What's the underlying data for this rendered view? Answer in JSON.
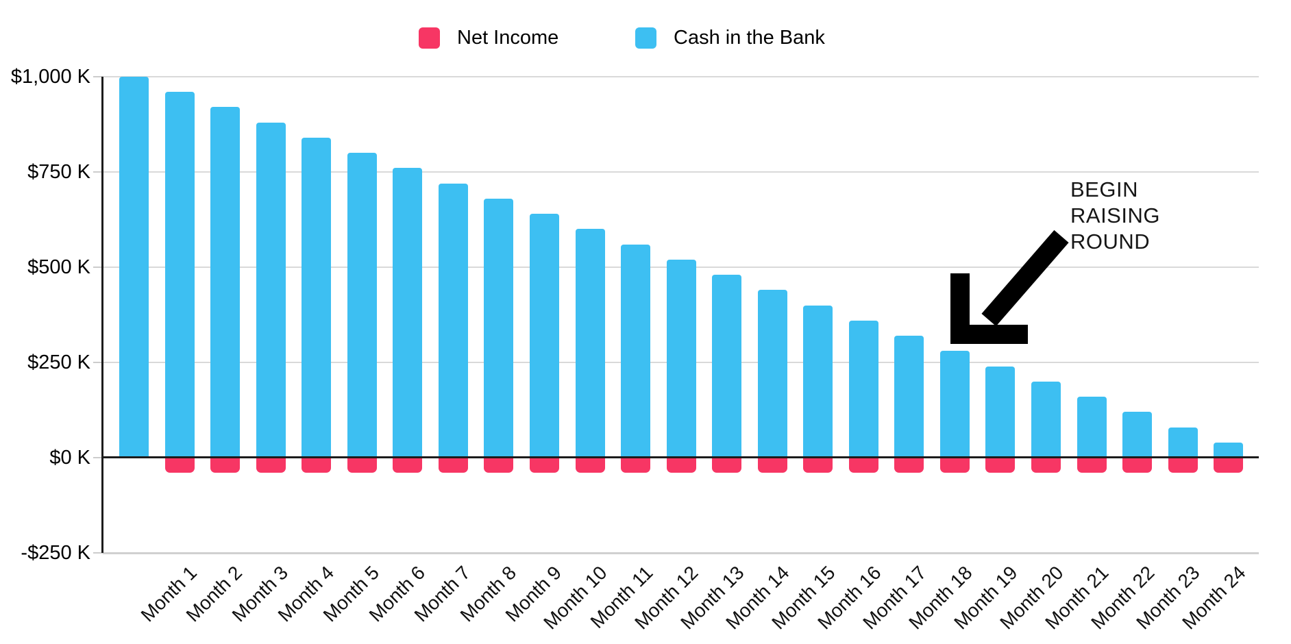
{
  "legend": {
    "items": [
      {
        "label": "Net Income",
        "color": "#f73664"
      },
      {
        "label": "Cash in the Bank",
        "color": "#3dbff2"
      }
    ]
  },
  "annotation": {
    "lines": [
      "BEGIN",
      "RAISING",
      "ROUND"
    ],
    "full_text": "BEGIN RAISING ROUND",
    "arrow_color": "#000000"
  },
  "chart_data": {
    "type": "bar",
    "title": "",
    "xlabel": "",
    "ylabel": "",
    "categories": [
      "",
      "Month 1",
      "Month 2",
      "Month 3",
      "Month 4",
      "Month 5",
      "Month 6",
      "Month 7",
      "Month 8",
      "Month 9",
      "Month 10",
      "Month 11",
      "Month 12",
      "Month 13",
      "Month 14",
      "Month 15",
      "Month 16",
      "Month 17",
      "Month 18",
      "Month 19",
      "Month 20",
      "Month 21",
      "Month 22",
      "Month 23",
      "Month 24"
    ],
    "series": [
      {
        "name": "Net Income",
        "color": "#f73664",
        "values": [
          null,
          -40,
          -40,
          -40,
          -40,
          -40,
          -40,
          -40,
          -40,
          -40,
          -40,
          -40,
          -40,
          -40,
          -40,
          -40,
          -40,
          -40,
          -40,
          -40,
          -40,
          -40,
          -40,
          -40,
          -40
        ]
      },
      {
        "name": "Cash in the Bank",
        "color": "#3dbff2",
        "values": [
          1000,
          960,
          920,
          880,
          840,
          800,
          760,
          720,
          680,
          640,
          600,
          560,
          520,
          480,
          440,
          400,
          360,
          320,
          280,
          240,
          200,
          160,
          120,
          80,
          40
        ]
      }
    ],
    "units": "$K",
    "ylim": [
      -250,
      1000
    ],
    "y_ticks": [
      {
        "label": "$1,000 K",
        "value": 1000
      },
      {
        "label": "$750 K",
        "value": 750
      },
      {
        "label": "$500 K",
        "value": 500
      },
      {
        "label": "$250 K",
        "value": 250
      },
      {
        "label": "$0 K",
        "value": 0
      },
      {
        "label": "-$250 K",
        "value": -250
      }
    ],
    "grid": "horizontal",
    "legend_position": "top-center",
    "annotation": {
      "text": "BEGIN RAISING ROUND",
      "target_category": "Month 18",
      "target_value": 280
    }
  }
}
